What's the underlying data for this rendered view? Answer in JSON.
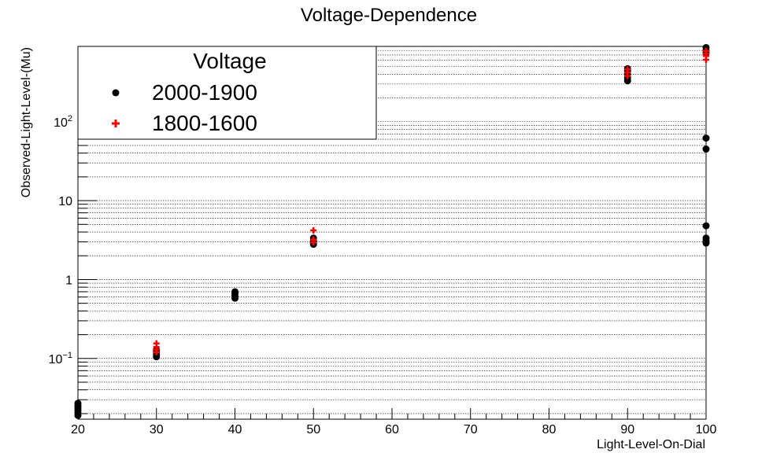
{
  "chart_data": {
    "type": "scatter",
    "title": "Voltage-Dependence",
    "xlabel": "Light-Level-On-Dial",
    "ylabel": "Observed-Light-Level-(Mu)",
    "xlim": [
      20,
      100
    ],
    "ylim": [
      0.017,
      900
    ],
    "yscale": "log",
    "grid": "y-major-and-minor",
    "legend_placement": "top-left",
    "legend_title": "Voltage",
    "x_ticks": [
      20,
      30,
      40,
      50,
      60,
      70,
      80,
      90,
      100
    ],
    "x_tick_labels": [
      "20",
      "30",
      "40",
      "50",
      "60",
      "70",
      "80",
      "90",
      "100"
    ],
    "y_ticks": [
      0.1,
      1,
      10,
      100
    ],
    "y_tick_labels": [
      {
        "base": "10",
        "exp": "−1"
      },
      {
        "base": "1",
        "exp": ""
      },
      {
        "base": "10",
        "exp": ""
      },
      {
        "base": "10",
        "exp": "2"
      }
    ],
    "series": [
      {
        "name": "2000-1900",
        "marker": "circle",
        "color": "#000000",
        "x": [
          20,
          20,
          20,
          20,
          20,
          20,
          30,
          30,
          30,
          30,
          40,
          40,
          40,
          40,
          50,
          50,
          50,
          50,
          90,
          90,
          90,
          90,
          90,
          100,
          100,
          100,
          100,
          100,
          100,
          100,
          100,
          100
        ],
        "y": [
          0.019,
          0.0205,
          0.022,
          0.0235,
          0.025,
          0.027,
          0.105,
          0.112,
          0.12,
          0.128,
          0.58,
          0.62,
          0.66,
          0.7,
          2.8,
          2.95,
          3.1,
          3.35,
          330,
          360,
          400,
          440,
          470,
          2.9,
          3.1,
          3.35,
          4.8,
          45,
          62,
          740,
          800,
          870
        ]
      },
      {
        "name": "1800-1600",
        "marker": "cross",
        "color": "#ff0000",
        "x": [
          30,
          30,
          30,
          30,
          50,
          50,
          50,
          90,
          90,
          90,
          100,
          100,
          100,
          100
        ],
        "y": [
          0.12,
          0.13,
          0.14,
          0.155,
          2.95,
          3.2,
          4.2,
          380,
          420,
          460,
          610,
          680,
          730,
          790
        ]
      }
    ]
  }
}
